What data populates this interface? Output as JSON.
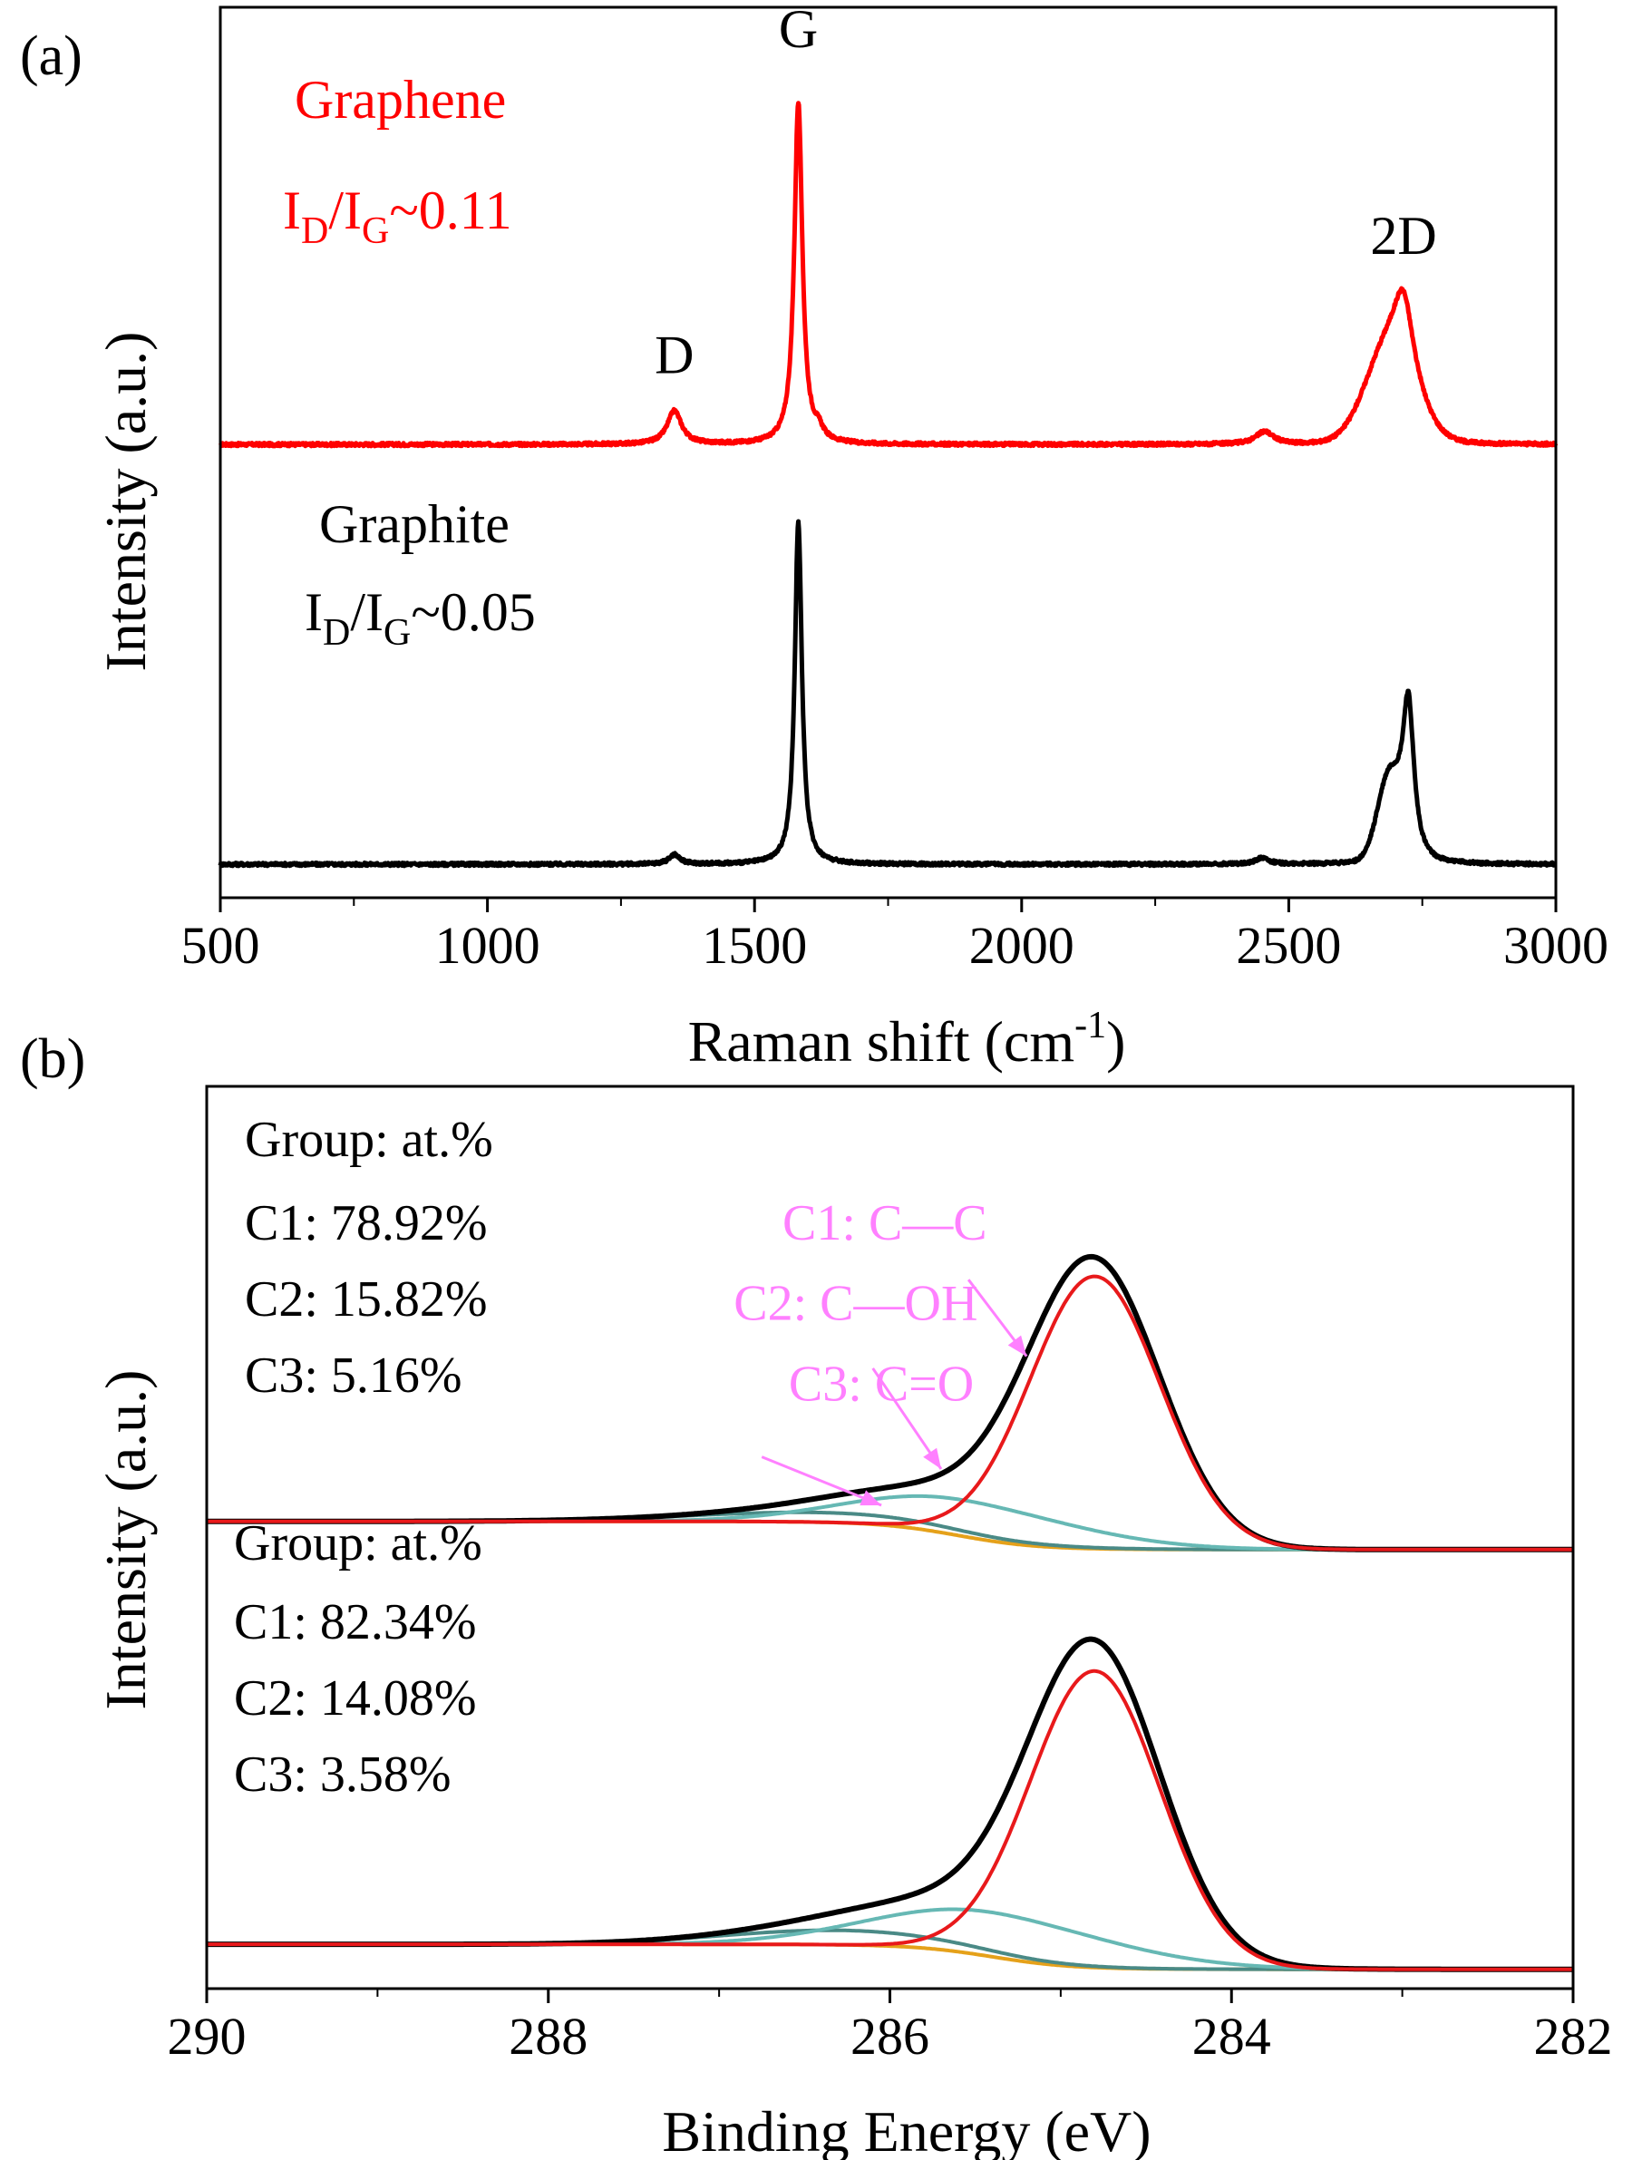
{
  "chart_data": [
    {
      "panel": "(a)",
      "type": "line",
      "xlabel": "Raman shift (cm-1)",
      "xlabel_main": "Raman shift (cm",
      "xlabel_sup": "-1",
      "xlabel_close": ")",
      "ylabel": "Intensity (a.u.)",
      "xlim": [
        500,
        3000
      ],
      "ylim": [
        0,
        1.12
      ],
      "x_ticks": [
        500,
        1000,
        1500,
        2000,
        2500,
        3000
      ],
      "y_ticks_visible": false,
      "grid": false,
      "series": [
        {
          "name": "Graphene",
          "color": "#ff0000",
          "ratio_text": "ID/IG~0.11",
          "ratio_parts": [
            "I",
            "D",
            "/I",
            "G",
            "~0.11"
          ],
          "baseline": 0.57,
          "peaks": [
            {
              "center": 1350,
              "height": 0.042,
              "width": 16,
              "shape": "lorentzian"
            },
            {
              "center": 1582,
              "height": 0.43,
              "width": 9,
              "shape": "lorentzian"
            },
            {
              "center": 1620,
              "height": 0.012,
              "width": 10,
              "shape": "lorentzian"
            },
            {
              "center": 2455,
              "height": 0.016,
              "width": 20,
              "shape": "lorentzian"
            },
            {
              "center": 2690,
              "height": 0.12,
              "width": 45,
              "shape": "gaussian"
            },
            {
              "center": 2715,
              "height": 0.09,
              "width": 22,
              "shape": "lorentzian"
            }
          ]
        },
        {
          "name": "Graphite",
          "color": "#000000",
          "ratio_text": "ID/IG~0.05",
          "ratio_parts": [
            "I",
            "D",
            "/I",
            "G",
            "~0.05"
          ],
          "baseline": 0.042,
          "peaks": [
            {
              "center": 1350,
              "height": 0.012,
              "width": 12,
              "shape": "lorentzian"
            },
            {
              "center": 1582,
              "height": 0.43,
              "width": 8,
              "shape": "lorentzian"
            },
            {
              "center": 2450,
              "height": 0.008,
              "width": 15,
              "shape": "lorentzian"
            },
            {
              "center": 2688,
              "height": 0.1,
              "width": 22,
              "shape": "gaussian"
            },
            {
              "center": 2724,
              "height": 0.19,
              "width": 13,
              "shape": "lorentzian"
            }
          ]
        }
      ],
      "peak_labels": [
        {
          "text": "D",
          "x": 1350,
          "y": 0.66
        },
        {
          "text": "G",
          "x": 1582,
          "y": 1.07
        },
        {
          "text": "2D",
          "x": 2715,
          "y": 0.81
        }
      ]
    },
    {
      "panel": "(b)",
      "type": "line",
      "xlabel": "Binding Energy (eV)",
      "ylabel": "Intensity (a.u.)",
      "xlim": [
        290,
        282
      ],
      "x_reversed": true,
      "ylim": [
        0,
        1.12
      ],
      "x_ticks": [
        290,
        288,
        286,
        284,
        282
      ],
      "y_ticks_visible": false,
      "grid": false,
      "series_colors": {
        "envelope": "#000000",
        "C1": "#e8191b",
        "C2": "#66b8b4",
        "C3": "#4a8a86",
        "background": "#e5a11a"
      },
      "spectra": [
        {
          "group_heading": "Group: at.%",
          "composition": [
            "C1: 78.92%",
            "C2: 15.82%",
            "C3: 5.16%"
          ],
          "background": {
            "high": 0.58,
            "low": 0.545,
            "center": 285.6,
            "width": 0.7
          },
          "components": [
            {
              "name": "C1",
              "center": 284.8,
              "height": 0.338,
              "fwhm": 0.9
            },
            {
              "name": "C2",
              "center": 285.55,
              "height": 0.045,
              "fwhm": 1.5
            },
            {
              "name": "C3",
              "center": 286.4,
              "height": 0.012,
              "fwhm": 1.8
            }
          ]
        },
        {
          "group_heading": "Group: at.%",
          "composition": [
            "C1: 82.34%",
            "C2: 14.08%",
            "C3: 3.58%"
          ],
          "background": {
            "high": 0.055,
            "low": 0.024,
            "center": 285.4,
            "width": 0.7
          },
          "components": [
            {
              "name": "C1",
              "center": 284.8,
              "height": 0.368,
              "fwhm": 0.9
            },
            {
              "name": "C2",
              "center": 285.4,
              "height": 0.055,
              "fwhm": 1.6
            },
            {
              "name": "C3",
              "center": 286.3,
              "height": 0.018,
              "fwhm": 1.6
            }
          ]
        }
      ],
      "annotations": {
        "color": "#ff80ff",
        "labels": [
          {
            "text": "C1: C—C",
            "x": 286.03,
            "y": 0.93,
            "arrow_from": [
              285.54,
              0.88
            ],
            "arrow_to": [
              285.2,
              0.785
            ]
          },
          {
            "text": "C2: C—OH",
            "x": 286.2,
            "y": 0.83,
            "arrow_from": [
              286.1,
              0.77
            ],
            "arrow_to": [
              285.7,
              0.645
            ]
          },
          {
            "text": "C3: C=O",
            "x": 286.05,
            "y": 0.73,
            "arrow_from": [
              286.75,
              0.66
            ],
            "arrow_to": [
              286.05,
              0.6
            ]
          }
        ]
      }
    }
  ]
}
